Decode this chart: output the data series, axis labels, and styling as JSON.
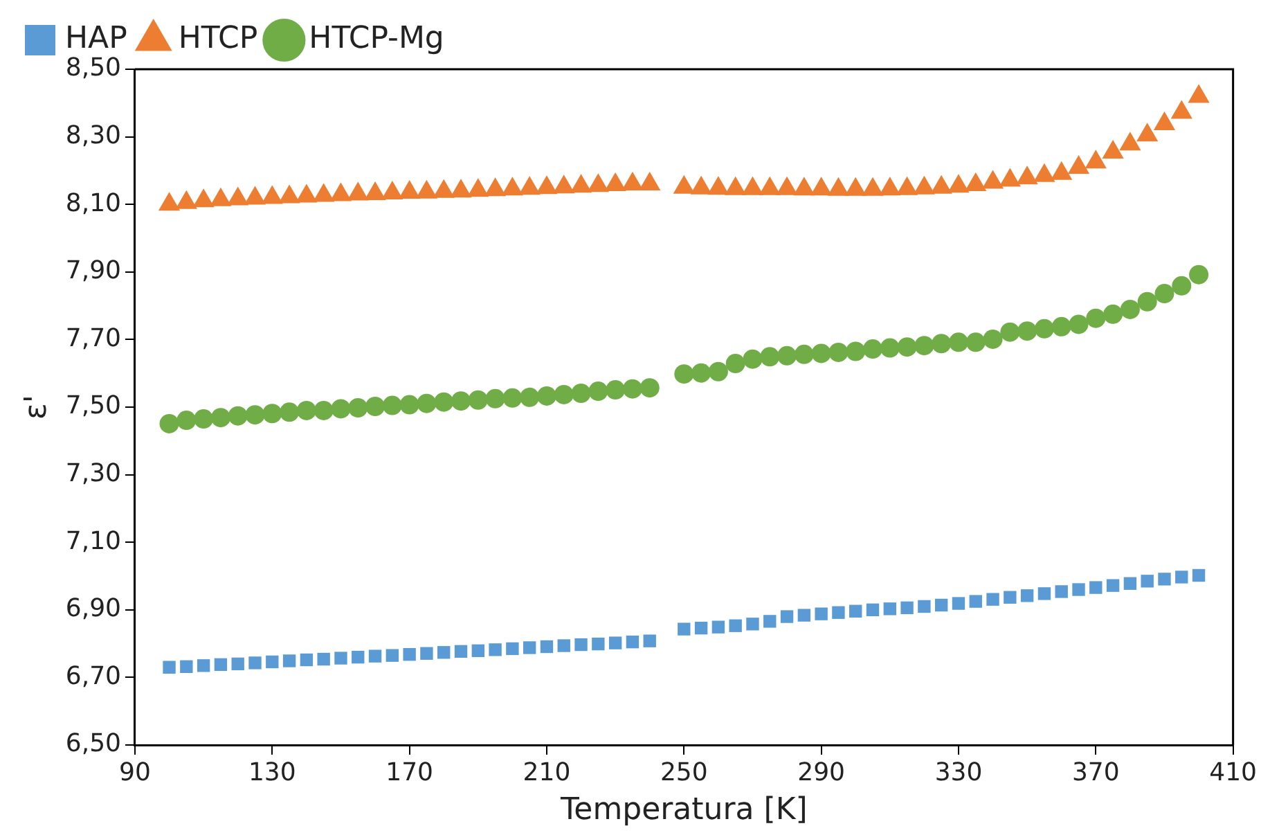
{
  "chart_data": {
    "type": "scatter",
    "xlabel": "Temperatura [K]",
    "ylabel": "ε'",
    "x": [
      100,
      105,
      110,
      115,
      120,
      125,
      130,
      135,
      140,
      145,
      150,
      155,
      160,
      165,
      170,
      175,
      180,
      185,
      190,
      195,
      200,
      205,
      210,
      215,
      220,
      225,
      230,
      235,
      240,
      250,
      255,
      260,
      265,
      270,
      275,
      280,
      285,
      290,
      295,
      300,
      305,
      310,
      315,
      320,
      325,
      330,
      335,
      340,
      345,
      350,
      355,
      360,
      365,
      370,
      375,
      380,
      385,
      390,
      395,
      400
    ],
    "series": [
      {
        "name": "HAP",
        "color": "#5b9bd5",
        "marker": "square",
        "values": [
          6.73,
          6.732,
          6.735,
          6.738,
          6.74,
          6.743,
          6.746,
          6.749,
          6.752,
          6.754,
          6.757,
          6.76,
          6.763,
          6.765,
          6.768,
          6.771,
          6.774,
          6.777,
          6.779,
          6.782,
          6.785,
          6.788,
          6.791,
          6.794,
          6.797,
          6.799,
          6.802,
          6.805,
          6.808,
          6.843,
          6.846,
          6.849,
          6.853,
          6.858,
          6.866,
          6.88,
          6.884,
          6.888,
          6.892,
          6.896,
          6.9,
          6.903,
          6.906,
          6.91,
          6.914,
          6.919,
          6.925,
          6.931,
          6.937,
          6.942,
          6.948,
          6.954,
          6.96,
          6.966,
          6.972,
          6.978,
          6.985,
          6.991,
          6.997,
          7.002
        ]
      },
      {
        "name": "HTCP",
        "color": "#ed7d31",
        "marker": "triangle",
        "values": [
          8.1,
          8.105,
          8.11,
          8.113,
          8.116,
          8.118,
          8.12,
          8.122,
          8.124,
          8.126,
          8.128,
          8.13,
          8.131,
          8.133,
          8.135,
          8.136,
          8.138,
          8.139,
          8.141,
          8.143,
          8.145,
          8.147,
          8.149,
          8.151,
          8.153,
          8.155,
          8.158,
          8.16,
          8.16,
          8.15,
          8.148,
          8.147,
          8.146,
          8.146,
          8.146,
          8.146,
          8.145,
          8.145,
          8.144,
          8.144,
          8.144,
          8.145,
          8.146,
          8.148,
          8.15,
          8.153,
          8.158,
          8.165,
          8.171,
          8.178,
          8.185,
          8.191,
          8.209,
          8.225,
          8.254,
          8.278,
          8.305,
          8.338,
          8.372,
          8.419
        ]
      },
      {
        "name": "HTCP-Mg",
        "color": "#70ad47",
        "marker": "circle",
        "values": [
          7.451,
          7.461,
          7.465,
          7.469,
          7.474,
          7.477,
          7.481,
          7.485,
          7.49,
          7.49,
          7.495,
          7.498,
          7.502,
          7.505,
          7.507,
          7.511,
          7.515,
          7.518,
          7.521,
          7.525,
          7.527,
          7.529,
          7.533,
          7.537,
          7.541,
          7.547,
          7.551,
          7.554,
          7.557,
          7.598,
          7.601,
          7.605,
          7.629,
          7.642,
          7.649,
          7.652,
          7.656,
          7.659,
          7.662,
          7.665,
          7.672,
          7.675,
          7.678,
          7.682,
          7.688,
          7.692,
          7.692,
          7.701,
          7.722,
          7.725,
          7.732,
          7.738,
          7.745,
          7.763,
          7.775,
          7.789,
          7.812,
          7.836,
          7.859,
          7.892
        ]
      }
    ],
    "xlim": [
      90,
      410
    ],
    "xticks": [
      90,
      130,
      170,
      210,
      250,
      290,
      330,
      370,
      410
    ],
    "ylim": [
      6.5,
      8.5
    ],
    "yticks": [
      {
        "value": 6.5,
        "label": "6,50"
      },
      {
        "value": 6.7,
        "label": "6,70"
      },
      {
        "value": 6.9,
        "label": "6,90"
      },
      {
        "value": 7.1,
        "label": "7,10"
      },
      {
        "value": 7.3,
        "label": "7,30"
      },
      {
        "value": 7.5,
        "label": "7,50"
      },
      {
        "value": 7.7,
        "label": "7,70"
      },
      {
        "value": 7.9,
        "label": "7,90"
      },
      {
        "value": 8.1,
        "label": "8,10"
      },
      {
        "value": 8.3,
        "label": "8,30"
      },
      {
        "value": 8.5,
        "label": "8,50"
      }
    ],
    "grid": false,
    "legend": "top left"
  }
}
